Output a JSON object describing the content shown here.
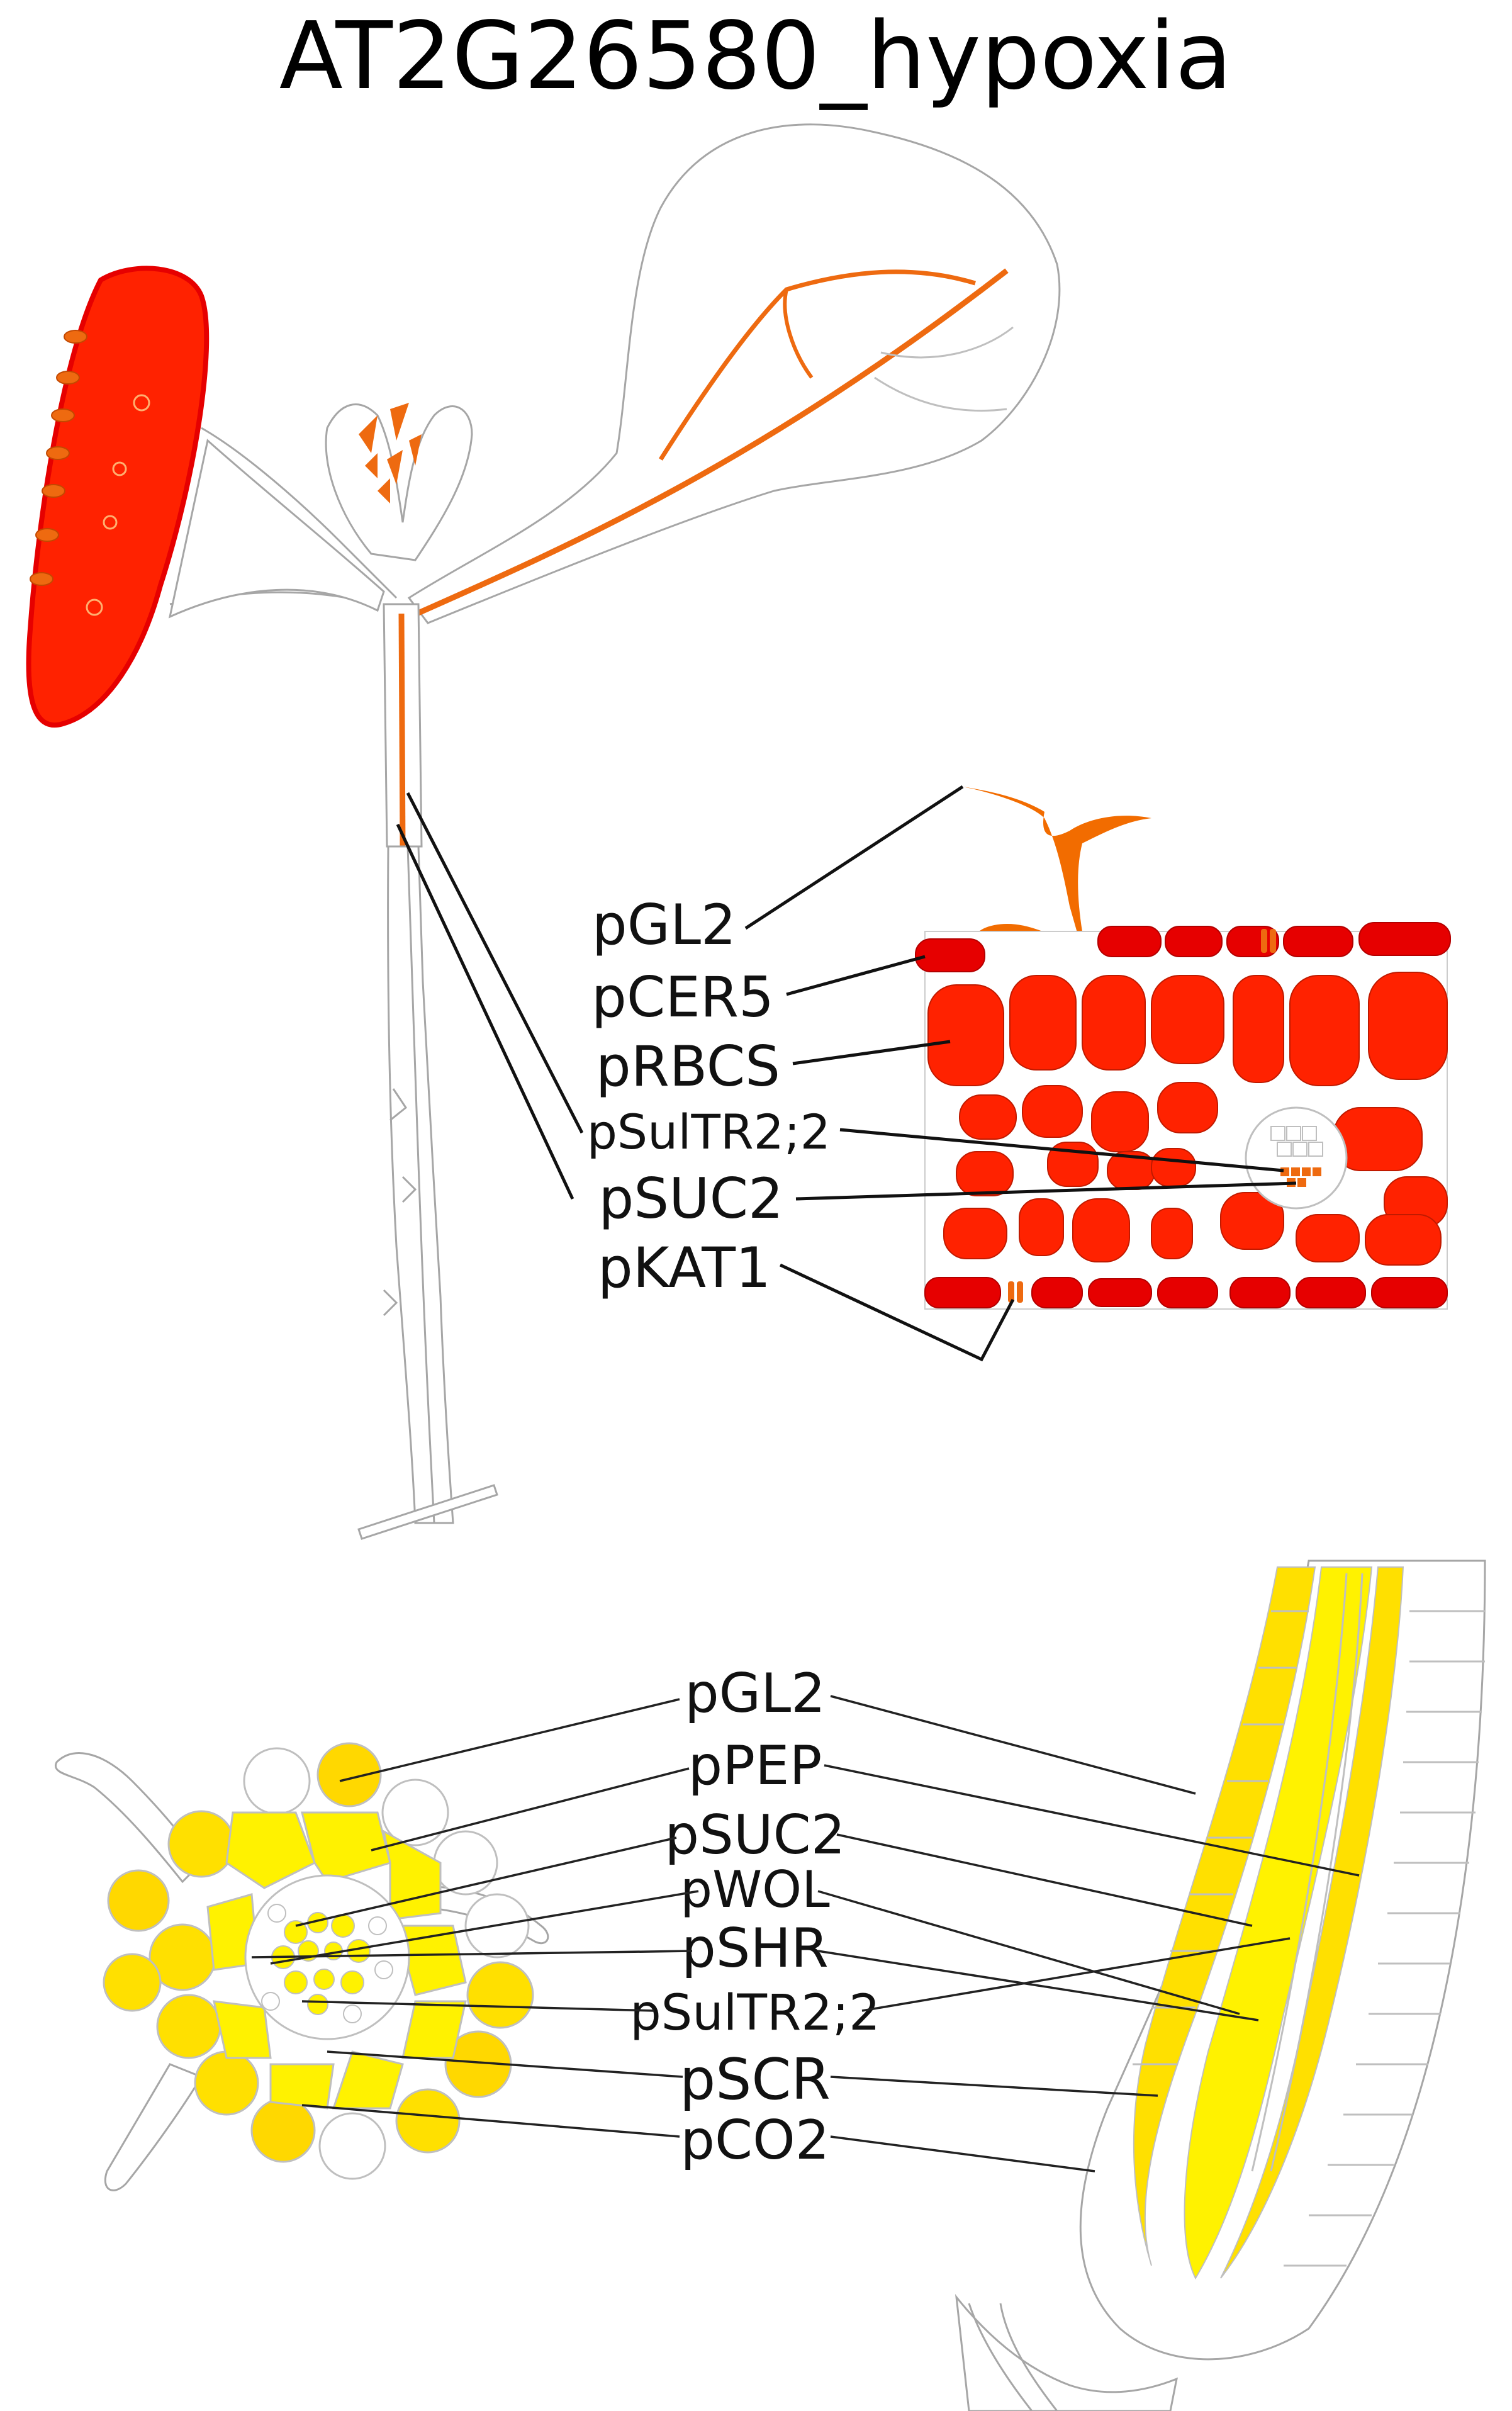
{
  "title": "AT2G26580_hypoxia",
  "colors": {
    "high": "#ff2200",
    "high_alt": "#e60000",
    "mid": "#ee6a10",
    "orange": "#f26c00",
    "root_strong": "#ffe000",
    "root_light": "#fff200",
    "root_dark": "#f5c800",
    "outline": "#a6a6a6"
  },
  "shoot_labels": [
    "pGL2",
    "pCER5",
    "pRBCS",
    "pSulTR2;2",
    "pSUC2",
    "pKAT1"
  ],
  "root_labels": [
    "pGL2",
    "pPEP",
    "pSUC2",
    "pWOL",
    "pSHR",
    "pSulTR2;2",
    "pSCR",
    "pCO2"
  ],
  "icons": [
    "seedling-shoot",
    "leaf-cross-section",
    "root-cross-section",
    "root-tip-longitudinal"
  ]
}
